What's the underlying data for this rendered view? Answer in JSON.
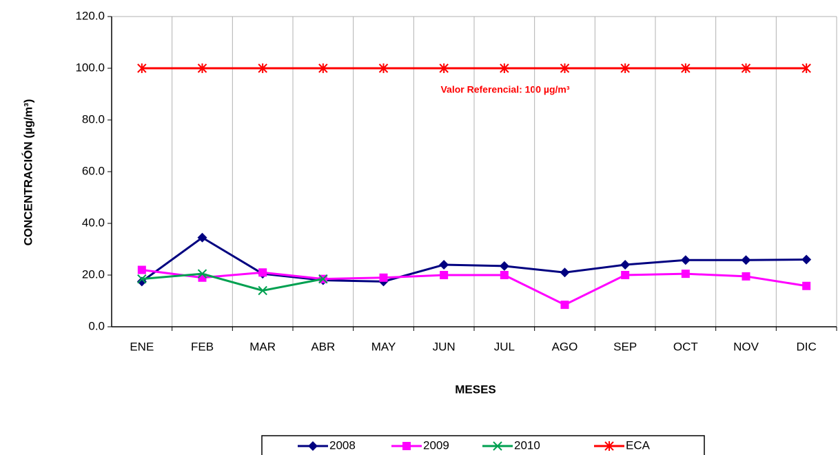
{
  "chart_data": {
    "type": "line",
    "y_label": "CONCENTRACIÓN (µg/m³)",
    "x_label": "MESES",
    "annotation": "Valor Referencial: 100   µg/m³",
    "categories": [
      "ENE",
      "FEB",
      "MAR",
      "ABR",
      "MAY",
      "JUN",
      "JUL",
      "AGO",
      "SEP",
      "OCT",
      "NOV",
      "DIC"
    ],
    "series": [
      {
        "name": "2008",
        "color": "#000080",
        "marker": "diamond",
        "values": [
          17.5,
          34.5,
          20.5,
          18,
          17.5,
          24,
          23.5,
          21,
          24,
          25.8,
          25.8,
          26
        ]
      },
      {
        "name": "2009",
        "color": "#ff00ff",
        "marker": "square",
        "values": [
          22,
          19,
          21,
          18.5,
          19,
          20,
          20,
          8.5,
          20,
          20.5,
          19.5,
          15.8
        ]
      },
      {
        "name": "2010",
        "color": "#00a050",
        "marker": "x",
        "values": [
          18.5,
          20.5,
          14,
          18.5,
          null,
          null,
          null,
          null,
          null,
          null,
          null,
          null
        ]
      },
      {
        "name": "ECA",
        "color": "#ff0000",
        "marker": "star",
        "values": [
          100,
          100,
          100,
          100,
          100,
          100,
          100,
          100,
          100,
          100,
          100,
          100
        ]
      }
    ],
    "ylim": [
      0,
      120
    ],
    "yticks": [
      {
        "value": 0,
        "label": "0.0"
      },
      {
        "value": 20,
        "label": "20.0"
      },
      {
        "value": 40,
        "label": "40.0"
      },
      {
        "value": 60,
        "label": "60.0"
      },
      {
        "value": 80,
        "label": "80.0"
      },
      {
        "value": 100,
        "label": "100.0"
      },
      {
        "value": 120,
        "label": "120.0"
      }
    ],
    "legend": "bottom"
  }
}
